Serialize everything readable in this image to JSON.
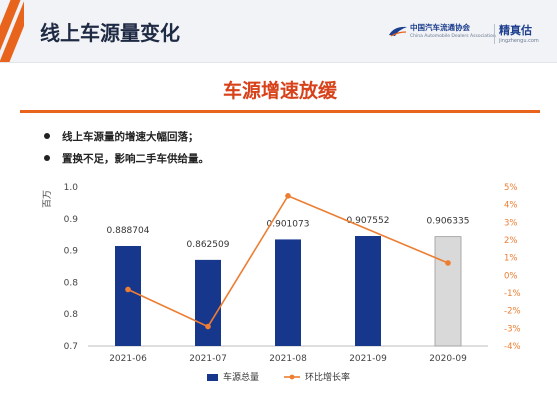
{
  "header": {
    "title": "线上车源量变化",
    "logos": {
      "caada_cn": "中国汽车流通协会",
      "caada_en": "China Automobile Dealers Association",
      "jzg_cn": "精真估",
      "jzg_en": "jingzhengu.com"
    },
    "accent_color": "#e8641c"
  },
  "banner": {
    "title": "车源增速放缓",
    "color": "#d8421a"
  },
  "bullets": [
    "线上车源量的增速大幅回落；",
    "置换不足，影响二手车供给量。"
  ],
  "chart_data": {
    "type": "bar",
    "categories": [
      "2021-06",
      "2021-07",
      "2021-08",
      "2021-09",
      "2020-09"
    ],
    "series": [
      {
        "name": "车源总量",
        "type": "bar",
        "values": [
          0.888704,
          0.862509,
          0.901073,
          0.907552,
          0.906335
        ],
        "labels": [
          "0.888704",
          "0.862509",
          "0.901073",
          "0.907552",
          "0.906335"
        ],
        "colors": [
          "#17378c",
          "#17378c",
          "#17378c",
          "#17378c",
          "#d9d9d9"
        ],
        "axis": "left"
      },
      {
        "name": "环比增长率",
        "type": "line",
        "values": [
          -0.8,
          -2.9,
          4.5,
          null,
          0.7
        ],
        "color": "#ed7d31",
        "axis": "right"
      }
    ],
    "y_left": {
      "label": "百万",
      "ylim": [
        0.7,
        1.0
      ],
      "ticks": [
        "1.0",
        "0.9",
        "0.9",
        "0.8",
        "0.8",
        "0.7"
      ]
    },
    "y_right": {
      "ylim": [
        -4,
        5
      ],
      "ticks": [
        "5%",
        "4%",
        "3%",
        "2%",
        "1%",
        "0%",
        "-1%",
        "-2%",
        "-3%",
        "-4%"
      ]
    },
    "grid": false,
    "legend": "bottom"
  }
}
